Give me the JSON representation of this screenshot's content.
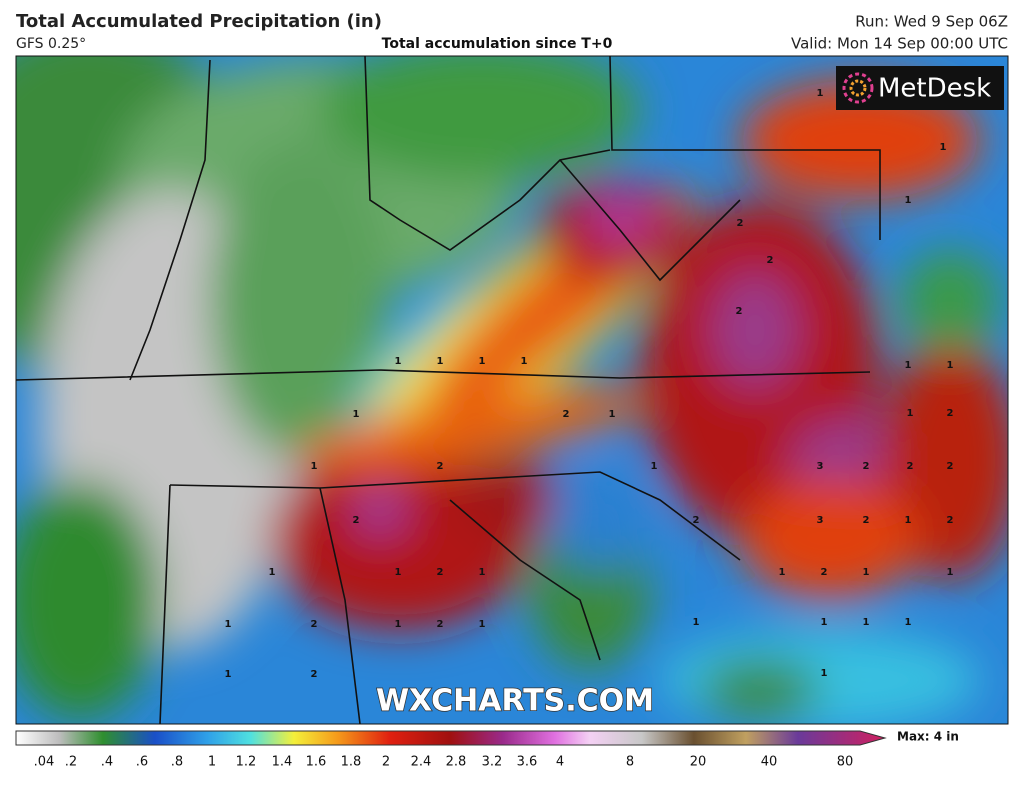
{
  "header": {
    "title": "Total Accumulated Precipitation (in)",
    "model": "GFS 0.25°",
    "subtitle": "Total accumulation since T+0",
    "run": "Run: Wed 9 Sep 06Z",
    "valid": "Valid: Mon 14 Sep 00:00 UTC"
  },
  "logo": "MetDesk",
  "watermark": "WXCHARTS.COM",
  "map_labels": [
    "1",
    "1",
    "1",
    "2",
    "2",
    "2",
    "1",
    "1",
    "1",
    "2",
    "2",
    "2",
    "3",
    "2",
    "1",
    "2",
    "2",
    "3",
    "1",
    "2",
    "1",
    "1",
    "1",
    "1",
    "1",
    "1",
    "1",
    "2",
    "1",
    "2",
    "2",
    "1",
    "1",
    "1",
    "1",
    "2",
    "1",
    "1",
    "1",
    "1",
    "1",
    "1",
    "1",
    "2",
    "1",
    "1",
    "2",
    "2",
    "1",
    "2"
  ],
  "legend": {
    "labels": [
      ".04",
      ".2",
      ".4",
      ".6",
      ".8",
      "1",
      "1.2",
      "1.4",
      "1.6",
      "1.8",
      "2",
      "2.4",
      "2.8",
      "3.2",
      "3.6",
      "4",
      "8",
      "20",
      "40",
      "80"
    ],
    "max": "Max: 4 in"
  }
}
